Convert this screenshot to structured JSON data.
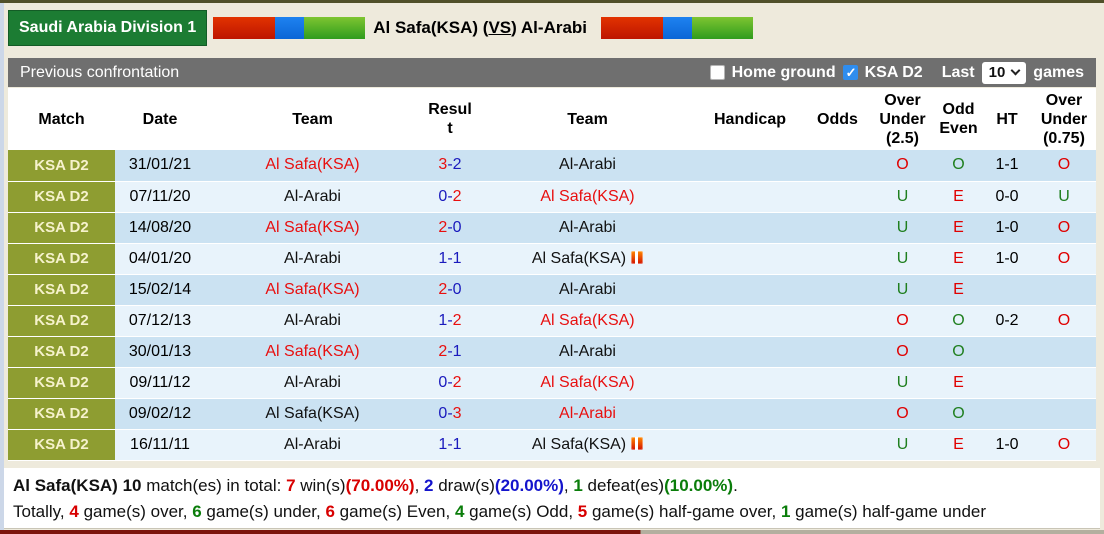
{
  "header": {
    "league": "Saudi Arabia Division 1",
    "title_left": "Al Safa(KSA) (",
    "title_vs": "VS",
    "title_right": ") Al-Arabi"
  },
  "toolbar": {
    "title": "Previous confrontation",
    "home_ground_label": "Home ground",
    "home_ground_checked": false,
    "ksa_d2_label": "KSA D2",
    "ksa_d2_checked": true,
    "last_label": "Last",
    "last_value": "10",
    "games_label": "games"
  },
  "table": {
    "headers": [
      "Match",
      "Date",
      "Team",
      "Resul\nt",
      "Team",
      "Handicap",
      "Odds",
      "Over\nUnder\n(2.5)",
      "Odd\nEven",
      "HT",
      "Over\nUnder\n(0.75)"
    ],
    "rows": [
      {
        "match": "KSA D2",
        "date": "31/01/21",
        "team1": {
          "name": "Al Safa(KSA)",
          "color": "red",
          "badge": false
        },
        "score": {
          "h": "3",
          "hc": "red",
          "a": "2",
          "ac": "blue"
        },
        "team2": {
          "name": "Al-Arabi",
          "color": "black",
          "badge": false
        },
        "handicap": "",
        "odds": "",
        "ou25": {
          "t": "O",
          "c": "red"
        },
        "oddeven": {
          "t": "O",
          "c": "green"
        },
        "ht": "1-1",
        "ou075": {
          "t": "O",
          "c": "red"
        }
      },
      {
        "match": "KSA D2",
        "date": "07/11/20",
        "team1": {
          "name": "Al-Arabi",
          "color": "black",
          "badge": false
        },
        "score": {
          "h": "0",
          "hc": "blue",
          "a": "2",
          "ac": "red"
        },
        "team2": {
          "name": "Al Safa(KSA)",
          "color": "red",
          "badge": false
        },
        "handicap": "",
        "odds": "",
        "ou25": {
          "t": "U",
          "c": "green"
        },
        "oddeven": {
          "t": "E",
          "c": "red"
        },
        "ht": "0-0",
        "ou075": {
          "t": "U",
          "c": "green"
        }
      },
      {
        "match": "KSA D2",
        "date": "14/08/20",
        "team1": {
          "name": "Al Safa(KSA)",
          "color": "red",
          "badge": false
        },
        "score": {
          "h": "2",
          "hc": "red",
          "a": "0",
          "ac": "blue"
        },
        "team2": {
          "name": "Al-Arabi",
          "color": "black",
          "badge": false
        },
        "handicap": "",
        "odds": "",
        "ou25": {
          "t": "U",
          "c": "green"
        },
        "oddeven": {
          "t": "E",
          "c": "red"
        },
        "ht": "1-0",
        "ou075": {
          "t": "O",
          "c": "red"
        }
      },
      {
        "match": "KSA D2",
        "date": "04/01/20",
        "team1": {
          "name": "Al-Arabi",
          "color": "black",
          "badge": false
        },
        "score": {
          "h": "1",
          "hc": "blue",
          "a": "1",
          "ac": "blue"
        },
        "team2": {
          "name": "Al Safa(KSA)",
          "color": "black",
          "badge": true
        },
        "handicap": "",
        "odds": "",
        "ou25": {
          "t": "U",
          "c": "green"
        },
        "oddeven": {
          "t": "E",
          "c": "red"
        },
        "ht": "1-0",
        "ou075": {
          "t": "O",
          "c": "red"
        }
      },
      {
        "match": "KSA D2",
        "date": "15/02/14",
        "team1": {
          "name": "Al Safa(KSA)",
          "color": "red",
          "badge": false
        },
        "score": {
          "h": "2",
          "hc": "red",
          "a": "0",
          "ac": "blue"
        },
        "team2": {
          "name": "Al-Arabi",
          "color": "black",
          "badge": false
        },
        "handicap": "",
        "odds": "",
        "ou25": {
          "t": "U",
          "c": "green"
        },
        "oddeven": {
          "t": "E",
          "c": "red"
        },
        "ht": "",
        "ou075": {
          "t": "",
          "c": "red"
        }
      },
      {
        "match": "KSA D2",
        "date": "07/12/13",
        "team1": {
          "name": "Al-Arabi",
          "color": "black",
          "badge": false
        },
        "score": {
          "h": "1",
          "hc": "blue",
          "a": "2",
          "ac": "red"
        },
        "team2": {
          "name": "Al Safa(KSA)",
          "color": "red",
          "badge": false
        },
        "handicap": "",
        "odds": "",
        "ou25": {
          "t": "O",
          "c": "red"
        },
        "oddeven": {
          "t": "O",
          "c": "green"
        },
        "ht": "0-2",
        "ou075": {
          "t": "O",
          "c": "red"
        }
      },
      {
        "match": "KSA D2",
        "date": "30/01/13",
        "team1": {
          "name": "Al Safa(KSA)",
          "color": "red",
          "badge": false
        },
        "score": {
          "h": "2",
          "hc": "red",
          "a": "1",
          "ac": "blue"
        },
        "team2": {
          "name": "Al-Arabi",
          "color": "black",
          "badge": false
        },
        "handicap": "",
        "odds": "",
        "ou25": {
          "t": "O",
          "c": "red"
        },
        "oddeven": {
          "t": "O",
          "c": "green"
        },
        "ht": "",
        "ou075": {
          "t": "",
          "c": "red"
        }
      },
      {
        "match": "KSA D2",
        "date": "09/11/12",
        "team1": {
          "name": "Al-Arabi",
          "color": "black",
          "badge": false
        },
        "score": {
          "h": "0",
          "hc": "blue",
          "a": "2",
          "ac": "red"
        },
        "team2": {
          "name": "Al Safa(KSA)",
          "color": "red",
          "badge": false
        },
        "handicap": "",
        "odds": "",
        "ou25": {
          "t": "U",
          "c": "green"
        },
        "oddeven": {
          "t": "E",
          "c": "red"
        },
        "ht": "",
        "ou075": {
          "t": "",
          "c": "red"
        }
      },
      {
        "match": "KSA D2",
        "date": "09/02/12",
        "team1": {
          "name": "Al Safa(KSA)",
          "color": "black",
          "badge": false
        },
        "score": {
          "h": "0",
          "hc": "blue",
          "a": "3",
          "ac": "red"
        },
        "team2": {
          "name": "Al-Arabi",
          "color": "red",
          "badge": false
        },
        "handicap": "",
        "odds": "",
        "ou25": {
          "t": "O",
          "c": "red"
        },
        "oddeven": {
          "t": "O",
          "c": "green"
        },
        "ht": "",
        "ou075": {
          "t": "",
          "c": "red"
        }
      },
      {
        "match": "KSA D2",
        "date": "16/11/11",
        "team1": {
          "name": "Al-Arabi",
          "color": "black",
          "badge": false
        },
        "score": {
          "h": "1",
          "hc": "blue",
          "a": "1",
          "ac": "blue"
        },
        "team2": {
          "name": "Al Safa(KSA)",
          "color": "black",
          "badge": true
        },
        "handicap": "",
        "odds": "",
        "ou25": {
          "t": "U",
          "c": "green"
        },
        "oddeven": {
          "t": "E",
          "c": "red"
        },
        "ht": "1-0",
        "ou075": {
          "t": "O",
          "c": "red"
        }
      }
    ]
  },
  "footer": {
    "line1": [
      {
        "t": "Al Safa(KSA) ",
        "c": "black",
        "b": true
      },
      {
        "t": "10",
        "c": "black",
        "b": true
      },
      {
        "t": " match(es) in total: ",
        "c": "black",
        "b": false
      },
      {
        "t": "7",
        "c": "red",
        "b": true
      },
      {
        "t": " win(s)",
        "c": "black",
        "b": false
      },
      {
        "t": "(70.00%)",
        "c": "red",
        "b": true
      },
      {
        "t": ", ",
        "c": "black",
        "b": false
      },
      {
        "t": "2",
        "c": "blue",
        "b": true
      },
      {
        "t": " draw(s)",
        "c": "black",
        "b": false
      },
      {
        "t": "(20.00%)",
        "c": "blue",
        "b": true
      },
      {
        "t": ", ",
        "c": "black",
        "b": false
      },
      {
        "t": "1",
        "c": "green",
        "b": true
      },
      {
        "t": " defeat(es)",
        "c": "black",
        "b": false
      },
      {
        "t": "(10.00%)",
        "c": "green",
        "b": true
      },
      {
        "t": ".",
        "c": "black",
        "b": false
      }
    ],
    "line2": [
      {
        "t": "Totally, ",
        "c": "black",
        "b": false
      },
      {
        "t": "4",
        "c": "red",
        "b": true
      },
      {
        "t": " game(s) over, ",
        "c": "black",
        "b": false
      },
      {
        "t": "6",
        "c": "green",
        "b": true
      },
      {
        "t": " game(s) under, ",
        "c": "black",
        "b": false
      },
      {
        "t": "6",
        "c": "red",
        "b": true
      },
      {
        "t": " game(s) Even, ",
        "c": "black",
        "b": false
      },
      {
        "t": "4",
        "c": "green",
        "b": true
      },
      {
        "t": " game(s) Odd, ",
        "c": "black",
        "b": false
      },
      {
        "t": "5",
        "c": "red",
        "b": true
      },
      {
        "t": " game(s) half-game over, ",
        "c": "black",
        "b": false
      },
      {
        "t": "1",
        "c": "green",
        "b": true
      },
      {
        "t": " game(s) half-game under",
        "c": "black",
        "b": false
      }
    ]
  },
  "colors": {
    "accent_green_box": "#1c7c33",
    "olive_match_cell": "#8e9d31",
    "toolbar_gray": "#6f6f6f",
    "row_dark_blue": "#cbe2f2",
    "row_light_blue": "#e8f3fb",
    "win_red": "#e80f0f",
    "score_blue": "#1a1abd",
    "under_green": "#1f7f1f"
  }
}
